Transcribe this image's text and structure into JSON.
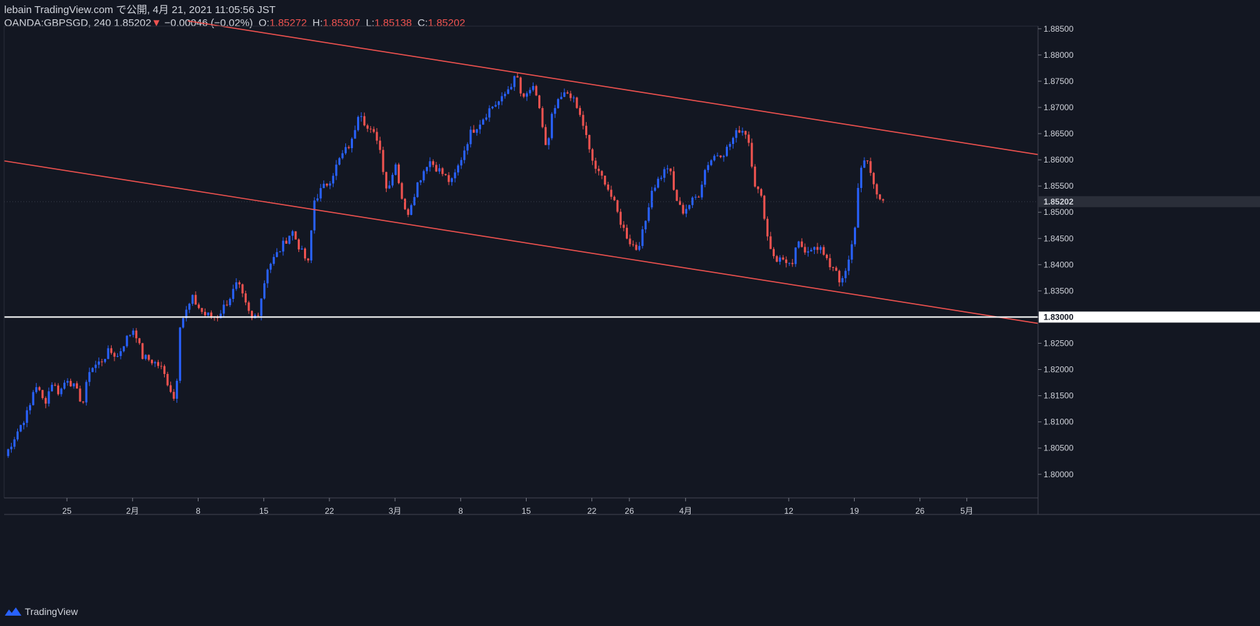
{
  "header": {
    "line1": "lebain TradingView.com で公開, 4月 21, 2021 11:05:56 JST",
    "symbol": "OANDA:GBPSGD, 240",
    "last": "1.85202",
    "change_arrow": "▼",
    "change": "−0.00046 (−0.02%)",
    "o_label": "O:",
    "o": "1.85272",
    "h_label": "H:",
    "h": "1.85307",
    "l_label": "L:",
    "l": "1.85138",
    "c_label": "C:",
    "c": "1.85202"
  },
  "footer": {
    "brand": "TradingView"
  },
  "colors": {
    "background": "#131722",
    "up": "#2962ff",
    "down": "#ef5350",
    "trendline": "#f0524f",
    "hline": "#ffffff",
    "axis_text": "#d1d4dc"
  },
  "chart_data": {
    "type": "candlestick",
    "symbol": "OANDA:GBPSGD",
    "interval": "240",
    "ylim": [
      1.7955,
      1.8855
    ],
    "y_ticks": [
      "1.80000",
      "1.80500",
      "1.81000",
      "1.81500",
      "1.82000",
      "1.82500",
      "1.83000",
      "1.83500",
      "1.84000",
      "1.84500",
      "1.85000",
      "1.85500",
      "1.86000",
      "1.86500",
      "1.87000",
      "1.87500",
      "1.88000",
      "1.88500"
    ],
    "x_ticks": [
      {
        "label": "25",
        "day": 7
      },
      {
        "label": "2月",
        "day": 14
      },
      {
        "label": "8",
        "day": 21
      },
      {
        "label": "15",
        "day": 28
      },
      {
        "label": "22",
        "day": 35
      },
      {
        "label": "3月",
        "day": 42
      },
      {
        "label": "8",
        "day": 49
      },
      {
        "label": "15",
        "day": 56
      },
      {
        "label": "22",
        "day": 63
      },
      {
        "label": "26",
        "day": 67
      },
      {
        "label": "4月",
        "day": 73
      },
      {
        "label": "12",
        "day": 84
      },
      {
        "label": "19",
        "day": 91
      },
      {
        "label": "26",
        "day": 98
      },
      {
        "label": "5月",
        "day": 103
      }
    ],
    "day_range": [
      0.3,
      110.6
    ],
    "path_points": [
      [
        0.4,
        1.8035
      ],
      [
        1.8,
        1.8085
      ],
      [
        3.0,
        1.8125
      ],
      [
        3.6,
        1.8175
      ],
      [
        4.6,
        1.8135
      ],
      [
        5.4,
        1.8175
      ],
      [
        6.2,
        1.8155
      ],
      [
        7.0,
        1.8185
      ],
      [
        7.8,
        1.8165
      ],
      [
        8.7,
        1.8135
      ],
      [
        9.4,
        1.82
      ],
      [
        10.6,
        1.8215
      ],
      [
        11.5,
        1.8235
      ],
      [
        12.4,
        1.8225
      ],
      [
        13.2,
        1.8255
      ],
      [
        14.2,
        1.828
      ],
      [
        15.0,
        1.8225
      ],
      [
        16.2,
        1.8215
      ],
      [
        17.0,
        1.8205
      ],
      [
        18.0,
        1.8165
      ],
      [
        18.6,
        1.8135
      ],
      [
        19.0,
        1.8285
      ],
      [
        20.4,
        1.8335
      ],
      [
        21.6,
        1.8305
      ],
      [
        23.0,
        1.83
      ],
      [
        24.3,
        1.8335
      ],
      [
        25.2,
        1.8365
      ],
      [
        26.0,
        1.8325
      ],
      [
        26.7,
        1.8295
      ],
      [
        27.4,
        1.831
      ],
      [
        28.4,
        1.8395
      ],
      [
        29.6,
        1.8425
      ],
      [
        31.0,
        1.8465
      ],
      [
        32.0,
        1.8425
      ],
      [
        32.8,
        1.84
      ],
      [
        33.3,
        1.852
      ],
      [
        34.0,
        1.854
      ],
      [
        35.0,
        1.856
      ],
      [
        36.2,
        1.8605
      ],
      [
        37.4,
        1.8635
      ],
      [
        38.2,
        1.87
      ],
      [
        39.0,
        1.866
      ],
      [
        40.2,
        1.864
      ],
      [
        41.2,
        1.8535
      ],
      [
        42.0,
        1.86
      ],
      [
        42.6,
        1.854
      ],
      [
        43.2,
        1.849
      ],
      [
        44.4,
        1.8555
      ],
      [
        45.6,
        1.86
      ],
      [
        47.0,
        1.8575
      ],
      [
        48.0,
        1.8555
      ],
      [
        48.8,
        1.859
      ],
      [
        50.0,
        1.865
      ],
      [
        51.2,
        1.8675
      ],
      [
        52.2,
        1.87
      ],
      [
        53.4,
        1.8715
      ],
      [
        54.2,
        1.874
      ],
      [
        55.0,
        1.876
      ],
      [
        55.6,
        1.871
      ],
      [
        56.6,
        1.874
      ],
      [
        57.4,
        1.87
      ],
      [
        58.2,
        1.861
      ],
      [
        58.8,
        1.869
      ],
      [
        59.8,
        1.872
      ],
      [
        60.6,
        1.873
      ],
      [
        61.6,
        1.869
      ],
      [
        62.2,
        1.866
      ],
      [
        62.8,
        1.861
      ],
      [
        63.6,
        1.8575
      ],
      [
        64.4,
        1.856
      ],
      [
        65.4,
        1.8515
      ],
      [
        66.2,
        1.8475
      ],
      [
        67.0,
        1.8445
      ],
      [
        67.8,
        1.843
      ],
      [
        68.6,
        1.847
      ],
      [
        69.3,
        1.854
      ],
      [
        70.2,
        1.8565
      ],
      [
        71.2,
        1.859
      ],
      [
        71.8,
        1.8535
      ],
      [
        72.6,
        1.85
      ],
      [
        73.4,
        1.8515
      ],
      [
        74.4,
        1.8535
      ],
      [
        75.2,
        1.859
      ],
      [
        76.2,
        1.861
      ],
      [
        77.2,
        1.8615
      ],
      [
        78.2,
        1.8645
      ],
      [
        78.8,
        1.866
      ],
      [
        79.6,
        1.865
      ],
      [
        80.4,
        1.8555
      ],
      [
        81.2,
        1.852
      ],
      [
        81.8,
        1.8445
      ],
      [
        82.6,
        1.841
      ],
      [
        83.6,
        1.841
      ],
      [
        84.4,
        1.8395
      ],
      [
        85.0,
        1.845
      ],
      [
        85.6,
        1.8415
      ],
      [
        86.6,
        1.844
      ],
      [
        87.4,
        1.843
      ],
      [
        88.2,
        1.84
      ],
      [
        89.0,
        1.8395
      ],
      [
        89.6,
        1.836
      ],
      [
        90.4,
        1.8405
      ],
      [
        91.0,
        1.846
      ],
      [
        91.4,
        1.8545
      ],
      [
        91.8,
        1.86
      ],
      [
        92.4,
        1.859
      ],
      [
        93.0,
        1.856
      ],
      [
        93.6,
        1.8525
      ],
      [
        94.2,
        1.852
      ]
    ],
    "trendlines": [
      {
        "name": "upper-channel",
        "from": [
          19.9,
          1.8865
        ],
        "to": [
          110.6,
          1.861
        ]
      },
      {
        "name": "lower-channel",
        "from": [
          0.3,
          1.8598
        ],
        "to": [
          110.6,
          1.8288
        ]
      }
    ],
    "horizontal_level": {
      "value": 1.83,
      "label": "1.83000"
    },
    "last_price": {
      "value": 1.85202,
      "label": "1.85202"
    }
  }
}
